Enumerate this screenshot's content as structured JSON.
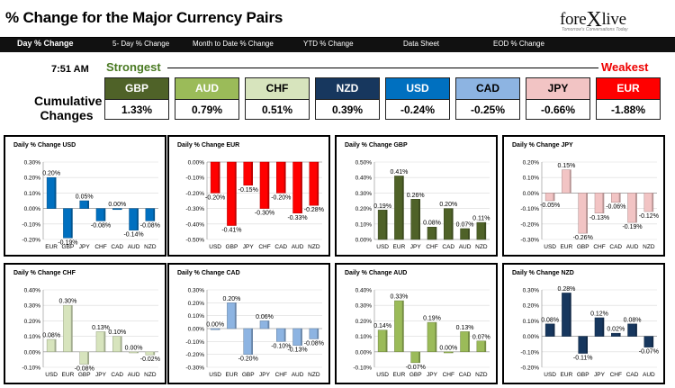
{
  "header": {
    "title": "% Change for the Major Currency Pairs",
    "logo": "forexlive",
    "logo_pre": "fore",
    "logo_x": "X",
    "logo_post": "live",
    "logo_tagline": "Tomorrow's Conversations Today"
  },
  "nav": [
    "Day % Change",
    "5- Day % Change",
    "Month to Date % Change",
    "YTD % Change",
    "Data Sheet",
    "EOD % Change"
  ],
  "summary": {
    "time": "7:51 AM",
    "strongest_label": "Strongest",
    "weakest_label": "Weakest",
    "cumulative_label": "Cumulative Changes",
    "currencies": [
      {
        "code": "GBP",
        "value": "1.33%",
        "color": "#4f6228"
      },
      {
        "code": "AUD",
        "value": "0.79%",
        "color": "#9bbb59"
      },
      {
        "code": "CHF",
        "value": "0.51%",
        "color": "#d7e4bd"
      },
      {
        "code": "NZD",
        "value": "0.39%",
        "color": "#17375e"
      },
      {
        "code": "USD",
        "value": "-0.24%",
        "color": "#0070c0"
      },
      {
        "code": "CAD",
        "value": "-0.25%",
        "color": "#8db4e2"
      },
      {
        "code": "JPY",
        "value": "-0.66%",
        "color": "#f2c4c4"
      },
      {
        "code": "EUR",
        "value": "-1.88%",
        "color": "#ff0000"
      }
    ]
  },
  "chart_data": [
    {
      "type": "bar",
      "title": "Daily % Change USD",
      "categories": [
        "EUR",
        "GBP",
        "JPY",
        "CHF",
        "CAD",
        "AUD",
        "NZD"
      ],
      "values": [
        0.2,
        -0.19,
        0.05,
        -0.08,
        0.0,
        -0.14,
        -0.08
      ],
      "labels": [
        "0.20%",
        "-0.19%",
        "0.05%",
        "-0.08%",
        "0.00%",
        "-0.14%",
        "-0.08%"
      ],
      "ylim": [
        -0.2,
        0.3
      ],
      "ticks": [
        -0.2,
        -0.1,
        0,
        0.1,
        0.2,
        0.3
      ],
      "color": "#0070c0"
    },
    {
      "type": "bar",
      "title": "Daily % Change EUR",
      "categories": [
        "USD",
        "GBP",
        "JPY",
        "CHF",
        "CAD",
        "AUD",
        "NZD"
      ],
      "values": [
        -0.2,
        -0.41,
        -0.15,
        -0.3,
        -0.2,
        -0.33,
        -0.28
      ],
      "labels": [
        "-0.20%",
        "-0.41%",
        "-0.15%",
        "-0.30%",
        "-0.20%",
        "-0.33%",
        "-0.28%"
      ],
      "ylim": [
        -0.5,
        0.0
      ],
      "ticks": [
        -0.5,
        -0.4,
        -0.3,
        -0.2,
        -0.1,
        0
      ],
      "color": "#ff0000"
    },
    {
      "type": "bar",
      "title": "Daily % Change GBP",
      "categories": [
        "USD",
        "EUR",
        "JPY",
        "CHF",
        "CAD",
        "AUD",
        "NZD"
      ],
      "values": [
        0.19,
        0.41,
        0.26,
        0.08,
        0.2,
        0.07,
        0.11
      ],
      "labels": [
        "0.19%",
        "0.41%",
        "0.26%",
        "0.08%",
        "0.20%",
        "0.07%",
        "0.11%"
      ],
      "ylim": [
        0.0,
        0.5
      ],
      "ticks": [
        0,
        0.1,
        0.2,
        0.3,
        0.4,
        0.5
      ],
      "color": "#4f6228"
    },
    {
      "type": "bar",
      "title": "Daily % Change JPY",
      "categories": [
        "USD",
        "EUR",
        "GBP",
        "CHF",
        "CAD",
        "AUD",
        "NZD"
      ],
      "values": [
        -0.05,
        0.15,
        -0.26,
        -0.13,
        -0.06,
        -0.19,
        -0.12
      ],
      "labels": [
        "-0.05%",
        "0.15%",
        "-0.26%",
        "-0.13%",
        "-0.06%",
        "-0.19%",
        "-0.12%"
      ],
      "ylim": [
        -0.3,
        0.2
      ],
      "ticks": [
        -0.3,
        -0.2,
        -0.1,
        0,
        0.1,
        0.2
      ],
      "color": "#f2c4c4"
    },
    {
      "type": "bar",
      "title": "Daily % Change CHF",
      "categories": [
        "USD",
        "EUR",
        "GBP",
        "JPY",
        "CAD",
        "AUD",
        "NZD"
      ],
      "values": [
        0.08,
        0.3,
        -0.08,
        0.13,
        0.1,
        0.0,
        -0.02
      ],
      "labels": [
        "0.08%",
        "0.30%",
        "-0.08%",
        "0.13%",
        "0.10%",
        "0.00%",
        "-0.02%"
      ],
      "ylim": [
        -0.1,
        0.4
      ],
      "ticks": [
        -0.1,
        0,
        0.1,
        0.2,
        0.3,
        0.4
      ],
      "color": "#d7e4bd"
    },
    {
      "type": "bar",
      "title": "Daily % Change CAD",
      "categories": [
        "USD",
        "EUR",
        "GBP",
        "JPY",
        "CHF",
        "AUD",
        "NZD"
      ],
      "values": [
        0.0,
        0.2,
        -0.2,
        0.06,
        -0.1,
        -0.13,
        -0.08
      ],
      "labels": [
        "0.00%",
        "0.20%",
        "-0.20%",
        "0.06%",
        "-0.10%",
        "-0.13%",
        "-0.08%"
      ],
      "ylim": [
        -0.3,
        0.3
      ],
      "ticks": [
        -0.3,
        -0.2,
        -0.1,
        0,
        0.1,
        0.2,
        0.3
      ],
      "color": "#8db4e2"
    },
    {
      "type": "bar",
      "title": "Daily % Change AUD",
      "categories": [
        "USD",
        "EUR",
        "GBP",
        "JPY",
        "CHF",
        "CAD",
        "NZD"
      ],
      "values": [
        0.14,
        0.33,
        -0.07,
        0.19,
        0.0,
        0.13,
        0.07
      ],
      "labels": [
        "0.14%",
        "0.33%",
        "-0.07%",
        "0.19%",
        "0.00%",
        "0.13%",
        "0.07%"
      ],
      "ylim": [
        -0.1,
        0.4
      ],
      "ticks": [
        -0.1,
        0,
        0.1,
        0.2,
        0.3,
        0.4
      ],
      "color": "#9bbb59"
    },
    {
      "type": "bar",
      "title": "Daily % Change NZD",
      "categories": [
        "USD",
        "EUR",
        "GBP",
        "JPY",
        "CHF",
        "CAD",
        "AUD"
      ],
      "values": [
        0.08,
        0.28,
        -0.11,
        0.12,
        0.02,
        0.08,
        -0.07
      ],
      "labels": [
        "0.08%",
        "0.28%",
        "-0.11%",
        "0.12%",
        "0.02%",
        "0.08%",
        "-0.07%"
      ],
      "ylim": [
        -0.2,
        0.3
      ],
      "ticks": [
        -0.2,
        -0.1,
        0,
        0.1,
        0.2,
        0.3
      ],
      "color": "#17375e"
    }
  ]
}
